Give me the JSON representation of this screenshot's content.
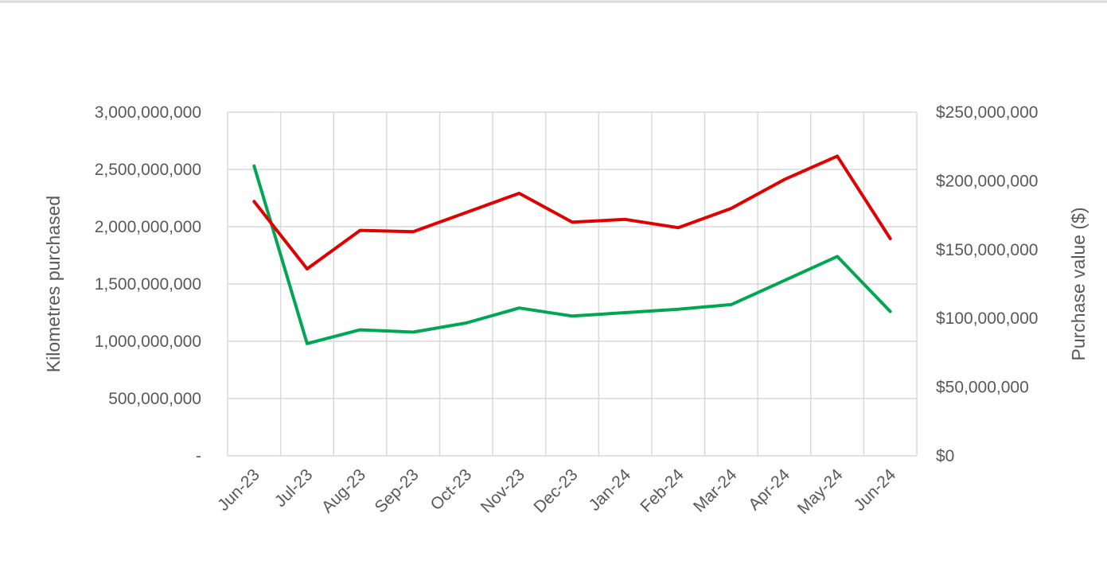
{
  "chart_data": {
    "type": "line",
    "categories": [
      "Jun-23",
      "Jul-23",
      "Aug-23",
      "Sep-23",
      "Oct-23",
      "Nov-23",
      "Dec-23",
      "Jan-24",
      "Feb-24",
      "Mar-24",
      "Apr-24",
      "May-24",
      "Jun-24"
    ],
    "series": [
      {
        "axis": "left",
        "color": "#00a651",
        "values": [
          2530000000,
          980000000,
          1100000000,
          1080000000,
          1160000000,
          1290000000,
          1220000000,
          1250000000,
          1280000000,
          1320000000,
          1530000000,
          1740000000,
          1260000000
        ]
      },
      {
        "axis": "right",
        "color": "#e00000",
        "values": [
          185000000,
          136000000,
          164000000,
          163000000,
          177000000,
          191000000,
          170000000,
          172000000,
          166000000,
          180000000,
          201000000,
          218000000,
          158000000
        ]
      }
    ],
    "ylabel": "Kilometres purchased",
    "ylabel_right": "Purchase value ($)",
    "ylim": [
      0,
      3000000000
    ],
    "ylim_right": [
      0,
      250000000
    ],
    "yticks": [
      "-",
      "500,000,000",
      "1,000,000,000",
      "1,500,000,000",
      "2,000,000,000",
      "2,500,000,000",
      "3,000,000,000"
    ],
    "yticks_right": [
      "$0",
      "$50,000,000",
      "$100,000,000",
      "$150,000,000",
      "$200,000,000",
      "$250,000,000"
    ],
    "grid": true,
    "legend": "none"
  },
  "colors": {
    "grid": "#d9d9d9",
    "text": "#595959",
    "top_rule": "#d9d9d9"
  }
}
